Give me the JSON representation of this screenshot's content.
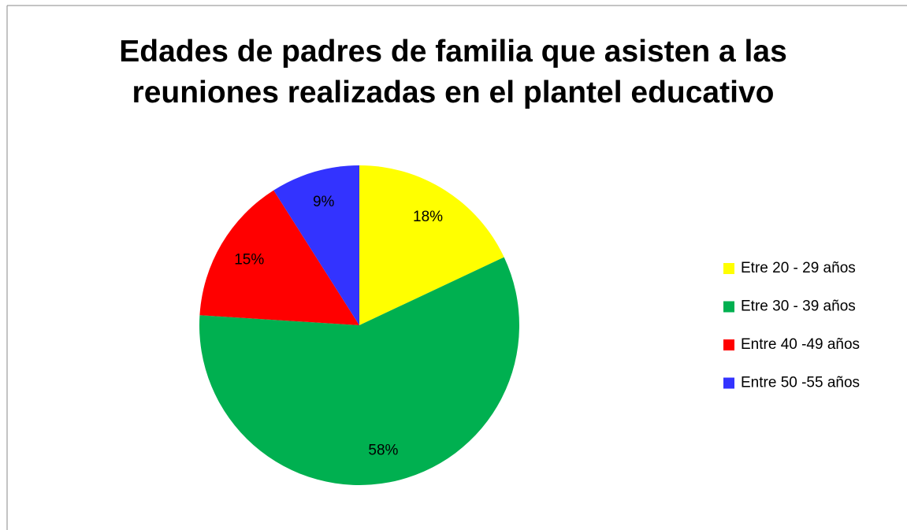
{
  "chart_data": {
    "type": "pie",
    "title": "Edades de padres de familia que asisten a las reuniones realizadas en el plantel educativo",
    "categories": [
      "Etre 20 - 29 años",
      "Etre 30 - 39 años",
      "Entre 40 -49 años",
      "Entre 50 -55 años"
    ],
    "values": [
      18,
      58,
      15,
      9
    ],
    "value_labels": [
      "18%",
      "58%",
      "15%",
      "9%"
    ],
    "colors": [
      "#ffff00",
      "#00b050",
      "#ff0000",
      "#3333ff"
    ],
    "legend": "right"
  }
}
